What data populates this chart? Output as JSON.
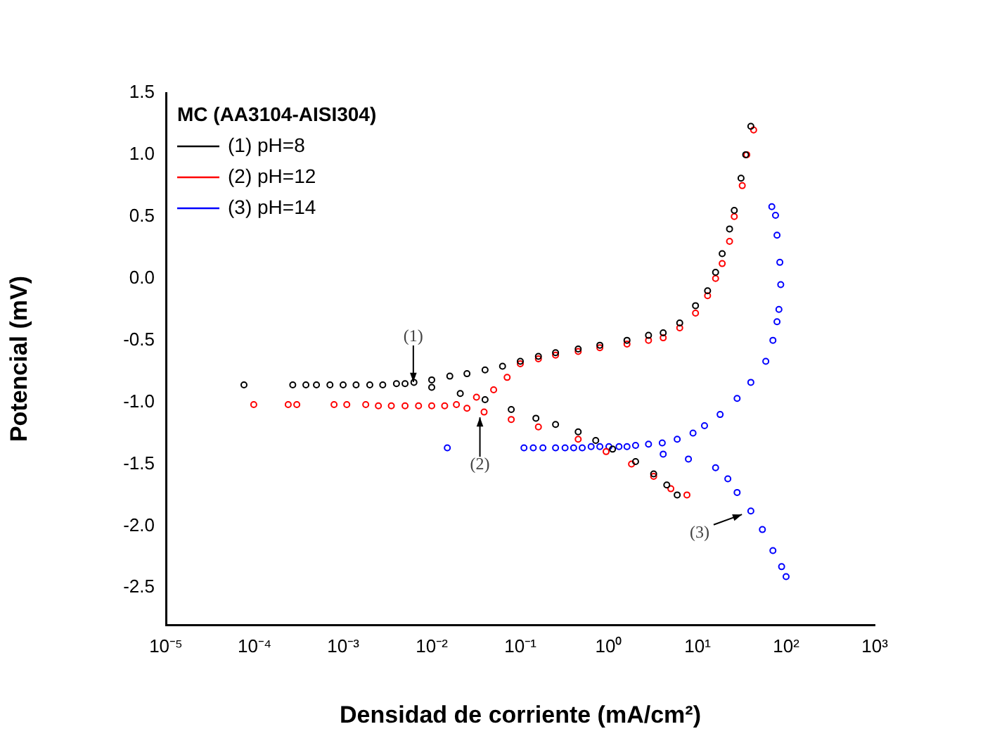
{
  "chart_data": {
    "type": "scatter",
    "xlabel": "Densidad de corriente (mA/cm²)",
    "ylabel": "Potencial (mV)",
    "legend_title": "MC (AA3104-AISI304)",
    "legend": "top left",
    "marker": "circle",
    "grid": false,
    "log": "x",
    "xlim": [
      1e-05,
      1000
    ],
    "ylim": [
      -2.8,
      1.5
    ],
    "xticks": [
      {
        "value": 1e-05,
        "label": "10⁻⁵"
      },
      {
        "value": 0.0001,
        "label": "10⁻⁴"
      },
      {
        "value": 0.001,
        "label": "10⁻³"
      },
      {
        "value": 0.01,
        "label": "10⁻²"
      },
      {
        "value": 0.1,
        "label": "10⁻¹"
      },
      {
        "value": 1,
        "label": "10⁰"
      },
      {
        "value": 10,
        "label": "10¹"
      },
      {
        "value": 100,
        "label": "10²"
      },
      {
        "value": 1000,
        "label": "10³"
      }
    ],
    "yticks": [
      1.5,
      {
        "value": 1,
        "label": "1.0"
      },
      0.5,
      {
        "value": 0,
        "label": "0.0"
      },
      -0.5,
      {
        "value": -1,
        "label": "-1.0"
      },
      -1.5,
      {
        "value": -2,
        "label": "-2.0"
      },
      -2.5
    ],
    "series": [
      {
        "name": "(1) pH=8",
        "color": "#000000",
        "x": [
          7.6e-05,
          0.00027,
          0.00038,
          0.0005,
          0.00071,
          0.001,
          0.0014,
          0.002,
          0.0028,
          0.004,
          0.005,
          0.0063,
          0.01,
          0.016,
          0.025,
          0.04,
          0.063,
          0.1,
          0.16,
          0.25,
          0.45,
          0.79,
          1.6,
          2.8,
          4.1,
          6.3,
          9.5,
          13,
          16,
          19,
          23,
          26,
          31,
          35,
          40,
          0.01,
          0.021,
          0.04,
          0.079,
          0.15,
          0.25,
          0.45,
          0.71,
          1.1,
          2,
          3.2,
          4.5,
          5.9
        ],
        "values": [
          -0.86,
          -0.86,
          -0.86,
          -0.86,
          -0.86,
          -0.86,
          -0.86,
          -0.86,
          -0.86,
          -0.85,
          -0.85,
          -0.84,
          -0.82,
          -0.79,
          -0.77,
          -0.74,
          -0.71,
          -0.67,
          -0.63,
          -0.6,
          -0.57,
          -0.54,
          -0.5,
          -0.46,
          -0.44,
          -0.36,
          -0.22,
          -0.1,
          0.05,
          0.2,
          0.4,
          0.55,
          0.81,
          1,
          1.23,
          -0.88,
          -0.93,
          -0.98,
          -1.06,
          -1.13,
          -1.18,
          -1.24,
          -1.31,
          -1.38,
          -1.48,
          -1.58,
          -1.67,
          -1.75
        ]
      },
      {
        "name": "(2) pH=12",
        "color": "#ff0000",
        "x": [
          9.8e-05,
          0.00024,
          0.0003,
          0.00079,
          0.0011,
          0.0018,
          0.0025,
          0.0035,
          0.005,
          0.0071,
          0.01,
          0.014,
          0.019,
          0.032,
          0.05,
          0.071,
          0.1,
          0.16,
          0.25,
          0.45,
          0.79,
          1.6,
          2.8,
          4.1,
          6.3,
          9.5,
          13,
          16,
          19,
          23,
          26,
          32,
          36,
          43,
          0.025,
          0.039,
          0.079,
          0.16,
          0.45,
          0.93,
          1.8,
          3.2,
          5,
          7.6
        ],
        "values": [
          -1.02,
          -1.02,
          -1.02,
          -1.02,
          -1.02,
          -1.02,
          -1.03,
          -1.03,
          -1.03,
          -1.03,
          -1.03,
          -1.03,
          -1.02,
          -0.96,
          -0.9,
          -0.8,
          -0.69,
          -0.65,
          -0.62,
          -0.59,
          -0.56,
          -0.53,
          -0.5,
          -0.48,
          -0.4,
          -0.28,
          -0.14,
          0,
          0.12,
          0.3,
          0.5,
          0.75,
          1,
          1.2,
          -1.05,
          -1.08,
          -1.14,
          -1.2,
          -1.3,
          -1.4,
          -1.5,
          -1.6,
          -1.7,
          -1.75
        ]
      },
      {
        "name": "(3) pH=14",
        "color": "#0000ff",
        "x": [
          0.015,
          0.11,
          0.14,
          0.18,
          0.25,
          0.32,
          0.4,
          0.5,
          0.63,
          0.79,
          1,
          1.3,
          1.6,
          2,
          2.8,
          4,
          5.9,
          8.9,
          12,
          18,
          28,
          40,
          59,
          71,
          79,
          83,
          87,
          85,
          79,
          76,
          69,
          4.1,
          7.9,
          16,
          22,
          28,
          40,
          54,
          71,
          89,
          100
        ],
        "values": [
          -1.37,
          -1.37,
          -1.37,
          -1.37,
          -1.37,
          -1.37,
          -1.37,
          -1.37,
          -1.36,
          -1.36,
          -1.36,
          -1.36,
          -1.36,
          -1.35,
          -1.34,
          -1.33,
          -1.3,
          -1.25,
          -1.19,
          -1.1,
          -0.97,
          -0.84,
          -0.67,
          -0.5,
          -0.35,
          -0.25,
          -0.05,
          0.13,
          0.35,
          0.51,
          0.58,
          -1.42,
          -1.46,
          -1.53,
          -1.62,
          -1.73,
          -1.88,
          -2.03,
          -2.2,
          -2.33,
          -2.41
        ]
      }
    ],
    "annotations": [
      {
        "text": "(1)",
        "x": 0.0062,
        "y": -0.86
      },
      {
        "text": "(2)",
        "x": 0.035,
        "y": -1.1
      },
      {
        "text": "(3)",
        "x": 34,
        "y": -1.9
      }
    ]
  }
}
